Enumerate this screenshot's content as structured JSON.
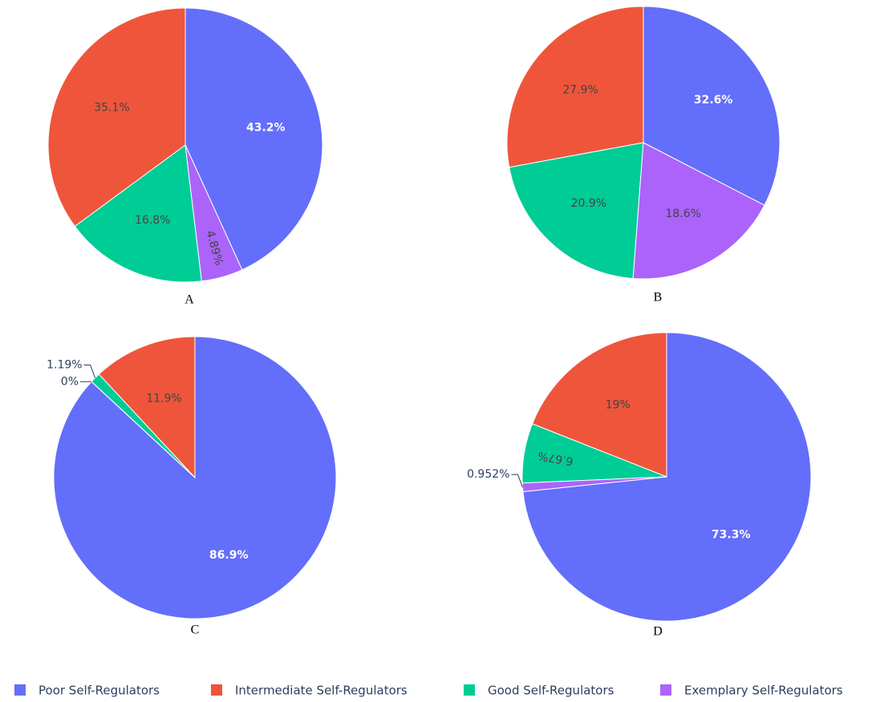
{
  "chart_data": [
    {
      "type": "pie",
      "title": "A",
      "values": [
        43.2,
        35.1,
        16.8,
        4.89
      ],
      "value_labels": [
        "43.2%",
        "35.1%",
        "16.8%",
        "4.89%"
      ],
      "direction": "counterclockwise"
    },
    {
      "type": "pie",
      "title": "B",
      "values": [
        32.6,
        27.9,
        20.9,
        18.6
      ],
      "value_labels": [
        "32.6%",
        "27.9%",
        "20.9%",
        "18.6%"
      ],
      "direction": "counterclockwise"
    },
    {
      "type": "pie",
      "title": "C",
      "values": [
        86.9,
        11.9,
        1.19,
        0
      ],
      "value_labels": [
        "86.9%",
        "11.9%",
        "1.19%",
        "0%"
      ],
      "direction": "counterclockwise"
    },
    {
      "type": "pie",
      "title": "D",
      "values": [
        73.3,
        19,
        6.67,
        0.952
      ],
      "value_labels": [
        "73.3%",
        "19%",
        "6.67%",
        "0.952%"
      ],
      "direction": "counterclockwise"
    }
  ],
  "legend": {
    "categories": [
      "Poor Self-Regulators",
      "Intermediate Self-Regulators",
      "Good Self-Regulators",
      "Exemplary Self-Regulators"
    ],
    "colors": [
      "#636efa",
      "#ef553b",
      "#00cc96",
      "#ab63fa"
    ]
  }
}
